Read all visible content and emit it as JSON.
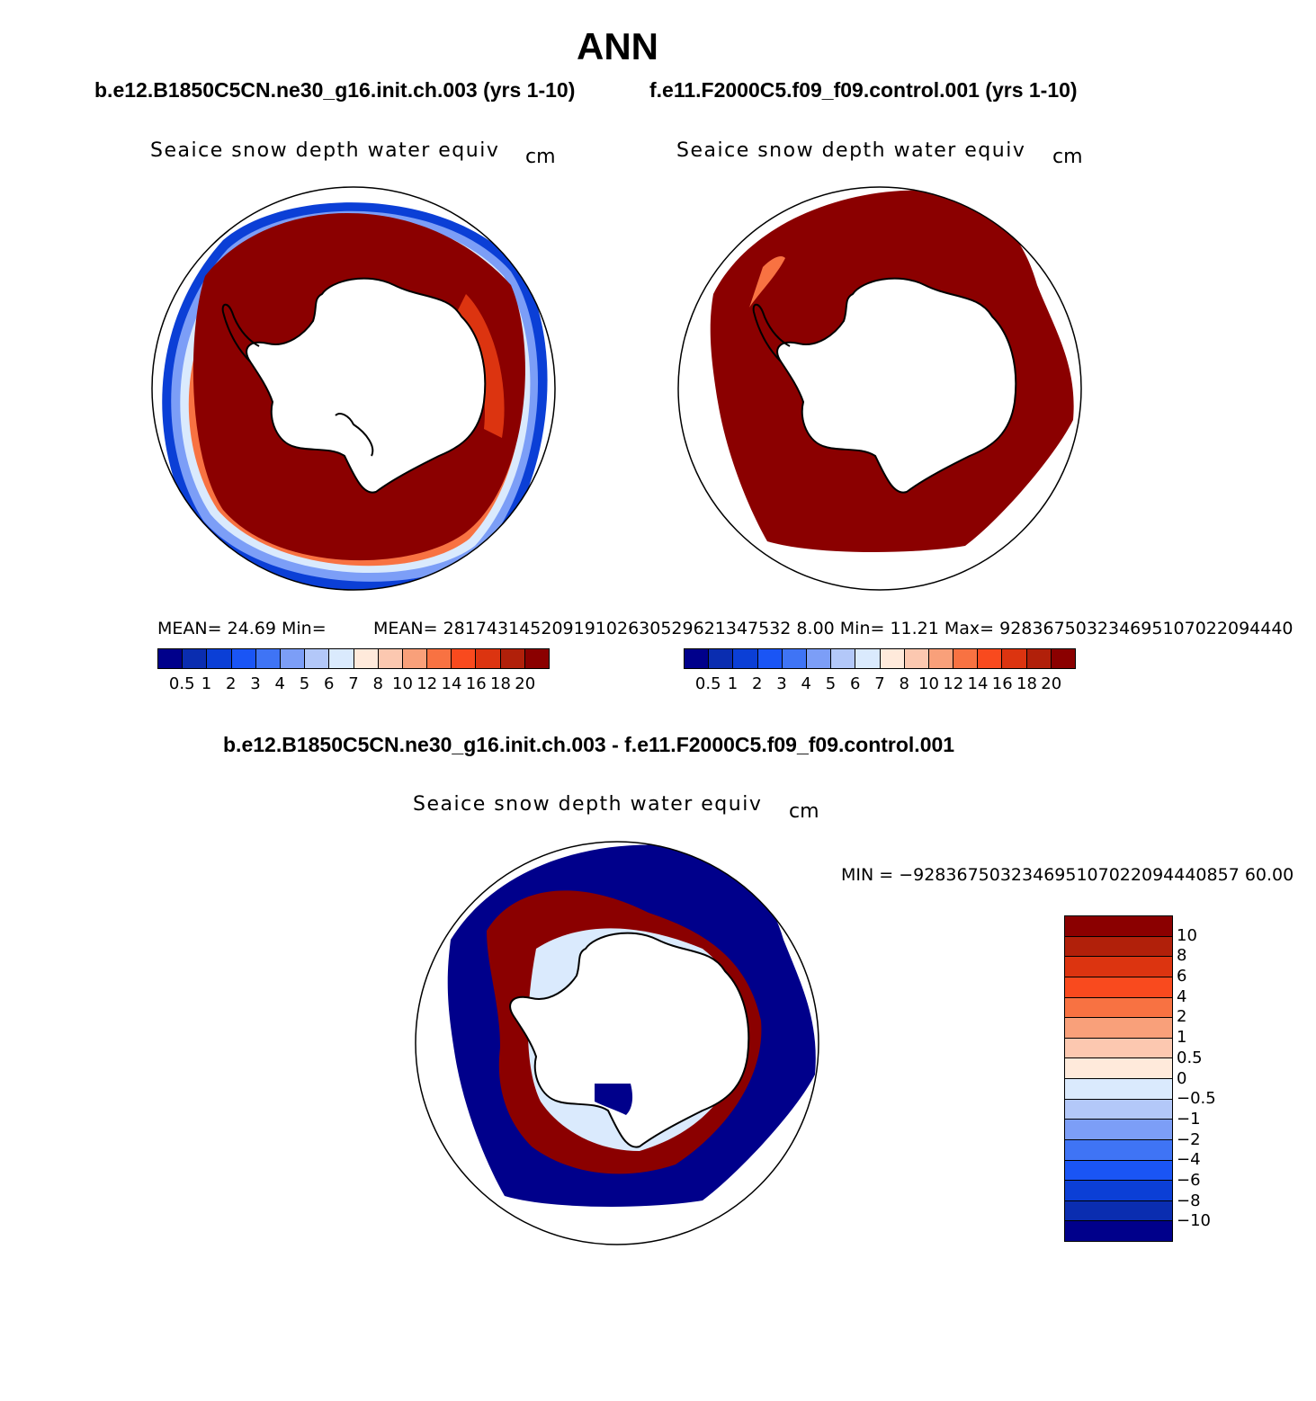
{
  "figure": {
    "season": "ANN",
    "case1_title": "b.e12.B1850C5CN.ne30_g16.init.ch.003 (yrs 1-10)",
    "case2_title": "f.e11.F2000C5.f09_f09.control.001 (yrs 1-10)",
    "diff_title": "b.e12.B1850C5CN.ne30_g16.init.ch.003 - f.e11.F2000C5.f09_f09.control.001"
  },
  "panels": [
    {
      "variable": "Seaice snow depth water equiv",
      "units": "cm",
      "stats_text": "MEAN=   24.69    Min=",
      "colorbar_labels": [
        "0.5",
        "1",
        "2",
        "3",
        "4",
        "5",
        "6",
        "7",
        "8",
        "10",
        "12",
        "14",
        "16",
        "18",
        "20"
      ]
    },
    {
      "variable": "Seaice snow depth water equiv",
      "units": "cm",
      "stats_text": "MEAN=  28174314520919102630529621347532 8.00    Min=    11.21    Max=  928367503234695107022094440",
      "colorbar_labels": [
        "0.5",
        "1",
        "2",
        "3",
        "4",
        "5",
        "6",
        "7",
        "8",
        "10",
        "12",
        "14",
        "16",
        "18",
        "20"
      ]
    },
    {
      "variable": "Seaice snow depth water equiv",
      "units": "cm",
      "min_text": "MIN = −928367503234695107022094440857 60.00",
      "colorbar_labels": [
        "10",
        "8",
        "6",
        "4",
        "2",
        "1",
        "0.5",
        "0",
        "−0.5",
        "−1",
        "−2",
        "−4",
        "−6",
        "−8",
        "−10"
      ]
    }
  ],
  "overlap_text": "MÉAN0= 28174314520919102630529621347532 8.00",
  "colors": {
    "abs_scale": [
      "#00008b",
      "#0a2db0",
      "#0b3fd6",
      "#1a55f5",
      "#3f74f5",
      "#7c9ef7",
      "#b3c8f9",
      "#daeafd",
      "#ffeadb",
      "#fcc8b0",
      "#f9a07a",
      "#f87242",
      "#f94a1e",
      "#dc3410",
      "#b1200a",
      "#8b0000"
    ],
    "diff_scale": [
      "#8b0000",
      "#b1200a",
      "#dc3410",
      "#f94a1e",
      "#f87242",
      "#f9a07a",
      "#fcc8b0",
      "#ffeadb",
      "#daeafd",
      "#b3c8f9",
      "#7c9ef7",
      "#3f74f5",
      "#1a55f5",
      "#0b3fd6",
      "#0a2db0",
      "#00008b"
    ],
    "land": "#ffffff"
  }
}
